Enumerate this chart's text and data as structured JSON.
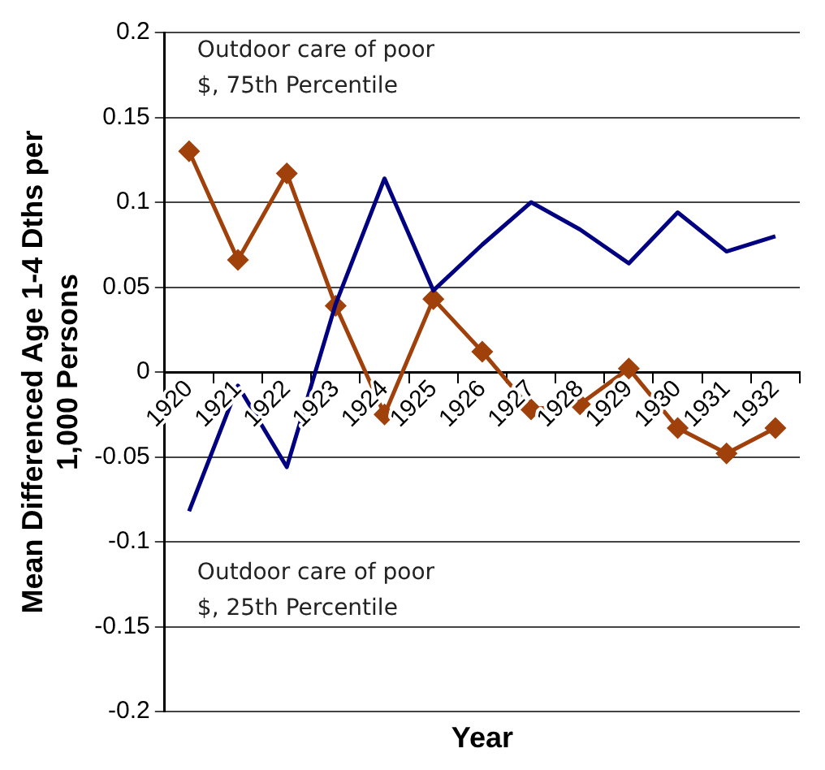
{
  "chart_data": {
    "type": "line",
    "xlabel": "Year",
    "ylabel": "Mean Differenced Age 1-4 Dths per 1,000 Persons",
    "categories": [
      "1920",
      "1921",
      "1922",
      "1923",
      "1924",
      "1925",
      "1926",
      "1927",
      "1928",
      "1929",
      "1930",
      "1931",
      "1932"
    ],
    "series": [
      {
        "name": "Outdoor care of poor $, 25th Percentile",
        "color": "#000080",
        "marker": "none",
        "values": [
          -0.082,
          -0.008,
          -0.056,
          0.04,
          0.114,
          0.048,
          0.075,
          0.1,
          0.084,
          0.064,
          0.094,
          0.071,
          0.08
        ]
      },
      {
        "name": "Outdoor care of poor $, 75th Percentile",
        "color": "#a0400a",
        "marker": "diamond",
        "values": [
          0.13,
          0.066,
          0.117,
          0.039,
          -0.025,
          0.043,
          0.012,
          -0.022,
          -0.019,
          0.002,
          -0.033,
          -0.048,
          -0.033
        ]
      }
    ],
    "ylim": [
      -0.2,
      0.2
    ],
    "yticks": [
      -0.2,
      -0.15,
      -0.1,
      -0.05,
      0,
      0.05,
      0.1,
      0.15,
      0.2
    ],
    "grid": "y",
    "legend": false
  }
}
